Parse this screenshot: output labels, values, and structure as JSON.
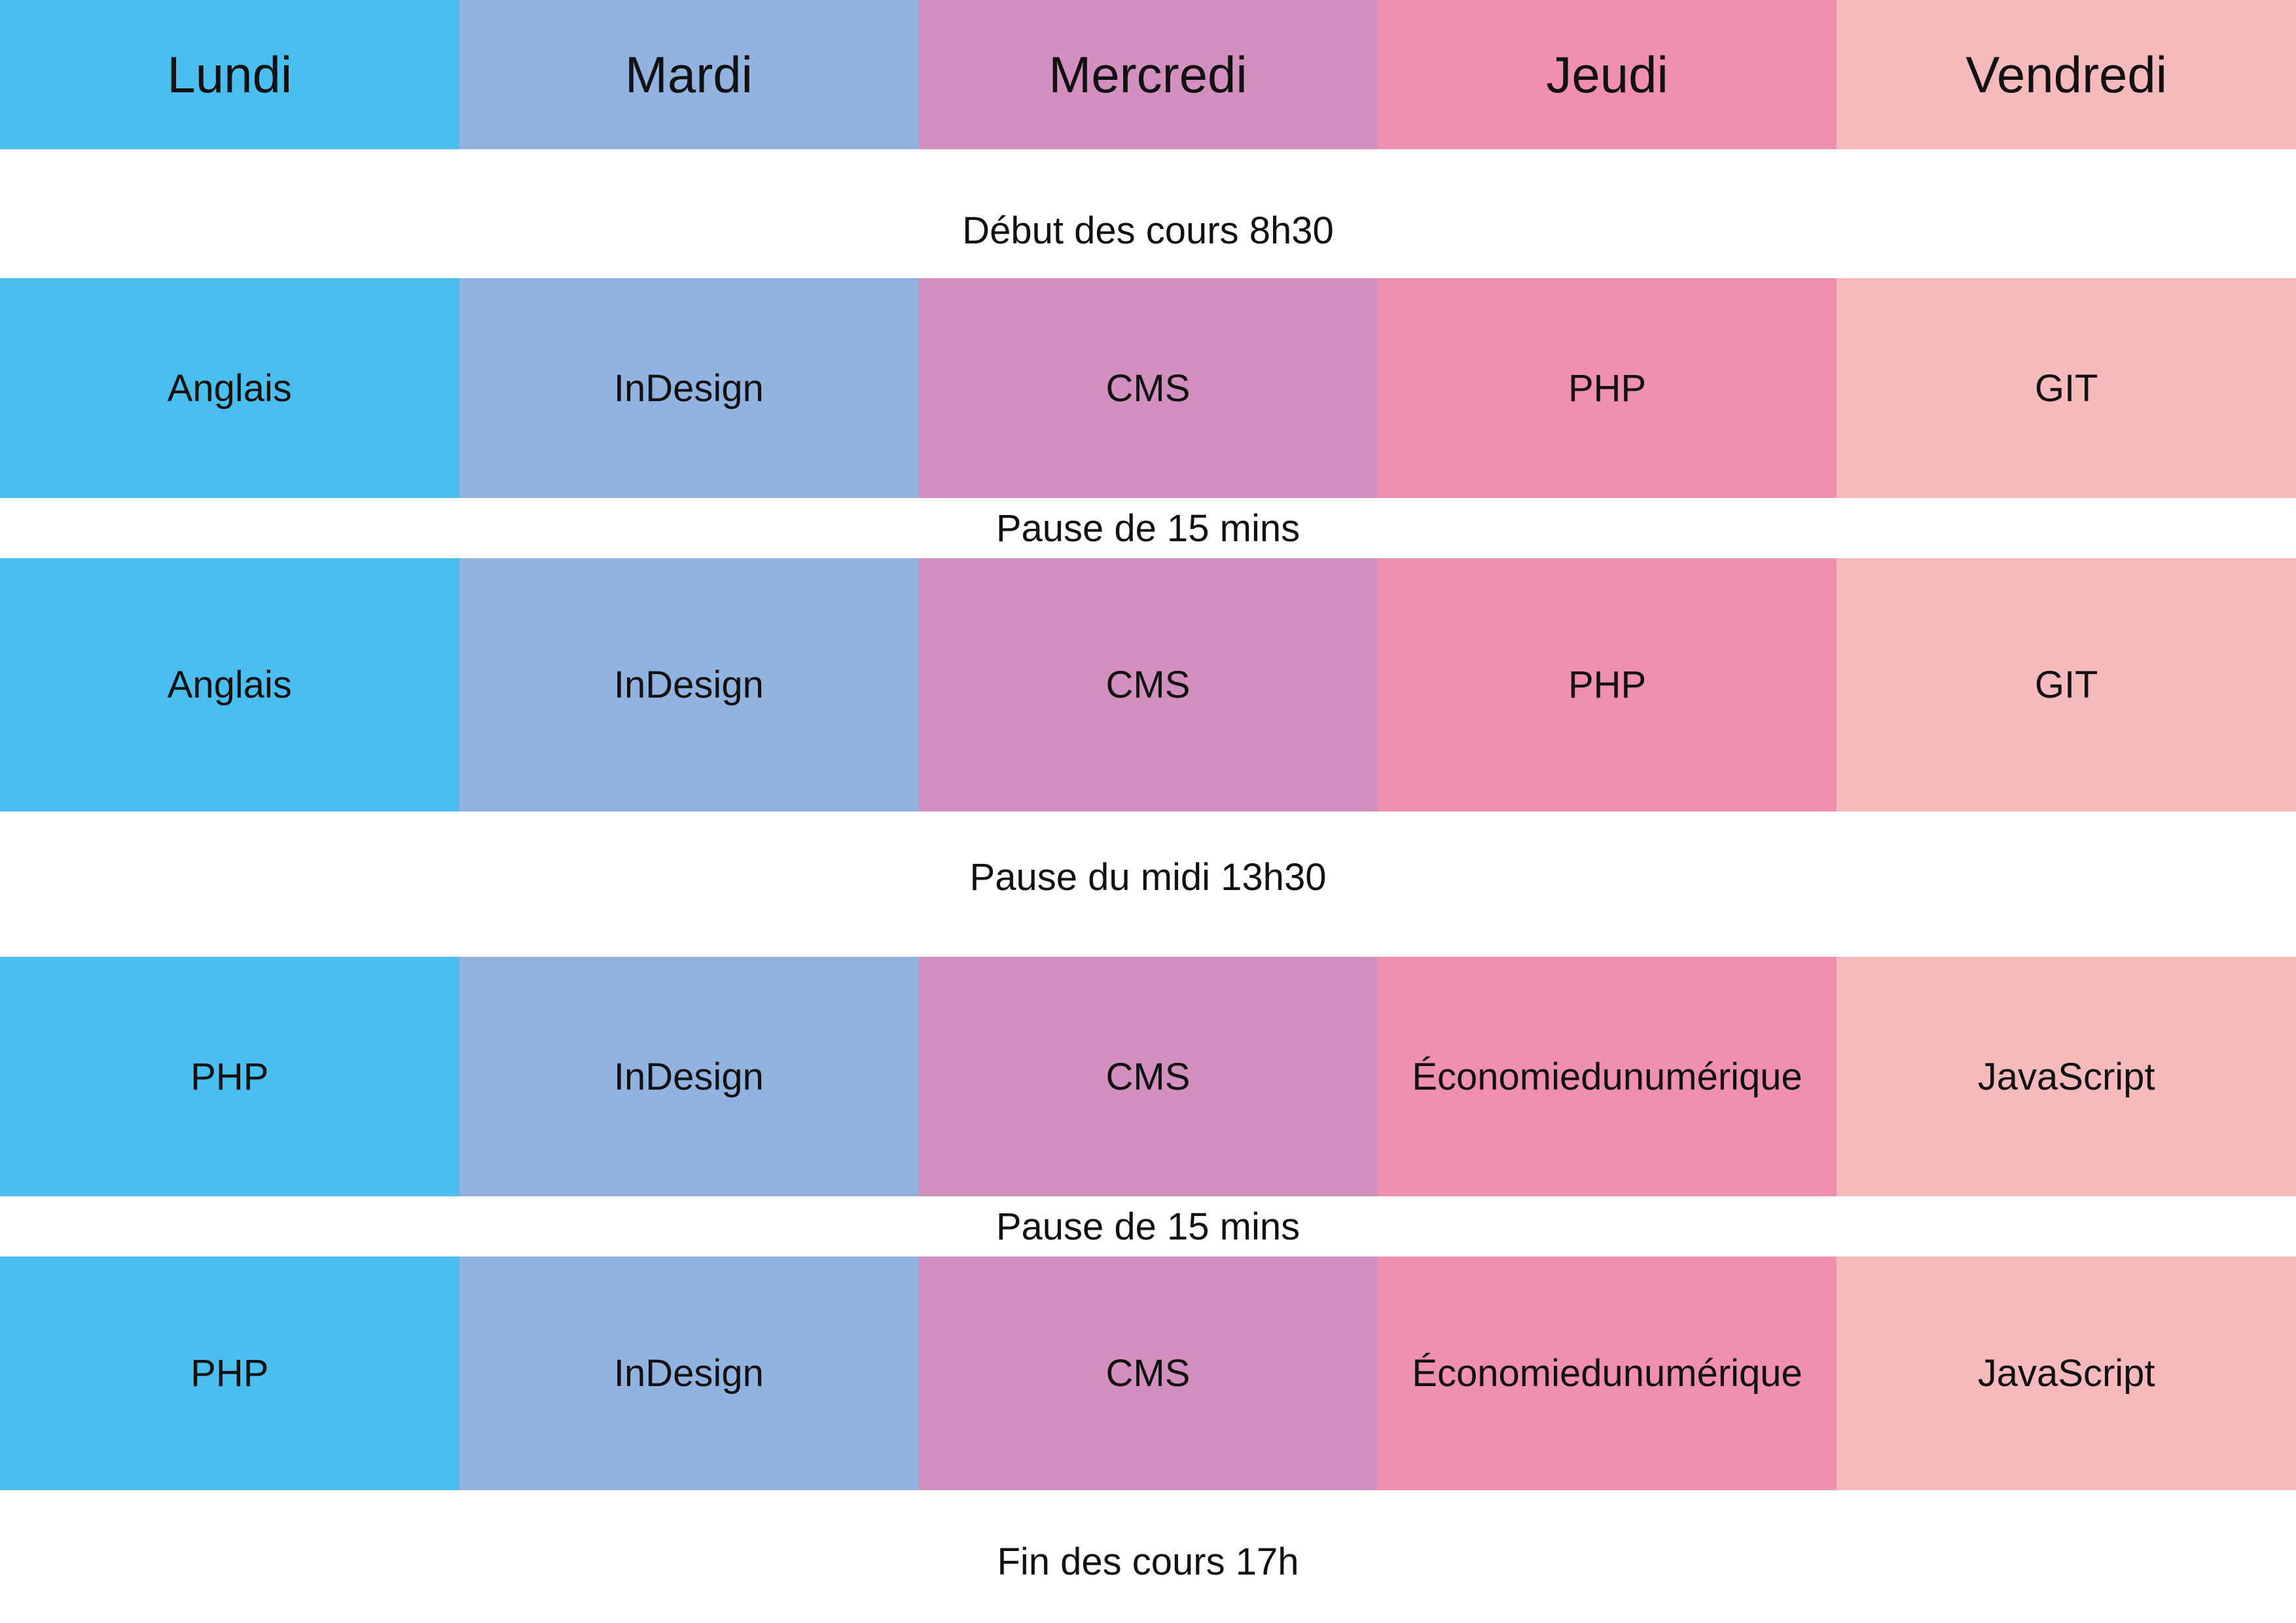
{
  "colors": {
    "lundi": "#4abfef",
    "mardi": "#92b2df",
    "mercredi": "#d38fbd",
    "jeudi": "#f08fae",
    "vendredi": "#f6babd",
    "background": "#ffffff",
    "text": "#111111"
  },
  "days": [
    "Lundi",
    "Mardi",
    "Mercredi",
    "Jeudi",
    "Vendredi"
  ],
  "schedule": {
    "start": "Début des cours 8h30",
    "block1": [
      "Anglais",
      "InDesign",
      "CMS",
      "PHP",
      "GIT"
    ],
    "break1": "Pause de 15 mins",
    "block2": [
      "Anglais",
      "InDesign",
      "CMS",
      "PHP",
      "GIT"
    ],
    "lunch": "Pause du midi 13h30",
    "block3": [
      "PHP",
      "InDesign",
      "CMS",
      "Économiedunumérique",
      "JavaScript"
    ],
    "break2": "Pause de 15 mins",
    "block4": [
      "PHP",
      "InDesign",
      "CMS",
      "Économiedunumérique",
      "JavaScript"
    ],
    "end": "Fin des cours 17h"
  }
}
